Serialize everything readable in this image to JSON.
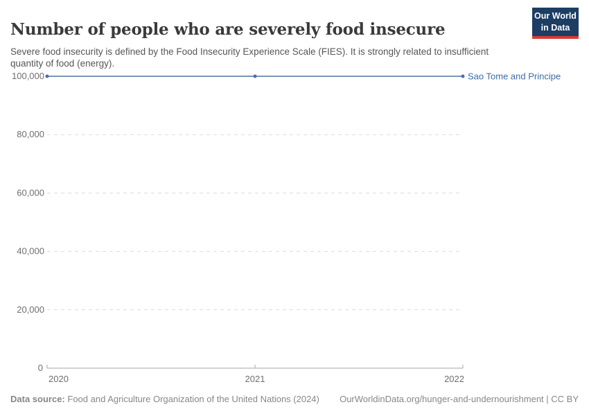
{
  "header": {
    "title": "Number of people who are severely food insecure",
    "subtitle": "Severe food insecurity is defined by the Food Insecurity Experience Scale (FIES). It is strongly related to insufficient quantity of food (energy).",
    "logo": {
      "line1": "Our World",
      "line2": "in Data",
      "bg_color": "#1d3d63",
      "accent_color": "#d73c32"
    }
  },
  "chart_data": {
    "type": "line",
    "title": "Number of people who are severely food insecure",
    "x": [
      2020,
      2021,
      2022
    ],
    "x_tick_labels": [
      "2020",
      "2021",
      "2022"
    ],
    "series": [
      {
        "name": "Sao Tome and Principe",
        "values": [
          100000,
          100000,
          100000
        ],
        "line_color": "#7b93b8",
        "marker_color": "#4c6fa5",
        "label_color": "#3e6ba5"
      }
    ],
    "xlabel": "",
    "ylabel": "",
    "ylim": [
      0,
      100000
    ],
    "xlim": [
      2020,
      2022
    ],
    "y_ticks": [
      0,
      20000,
      40000,
      60000,
      80000,
      100000
    ],
    "y_tick_labels": [
      "0",
      "20,000",
      "40,000",
      "60,000",
      "80,000",
      "100,000"
    ],
    "grid": "horizontal-dashed",
    "gridline_color": "#dcdcdc",
    "axis_color": "#a5a5a5",
    "legend_position": "end-of-line"
  },
  "footer": {
    "source_label": "Data source:",
    "source_text": "Food and Agriculture Organization of the United Nations (2024)",
    "link_text": "OurWorldinData.org/hunger-and-undernourishment | CC BY"
  }
}
